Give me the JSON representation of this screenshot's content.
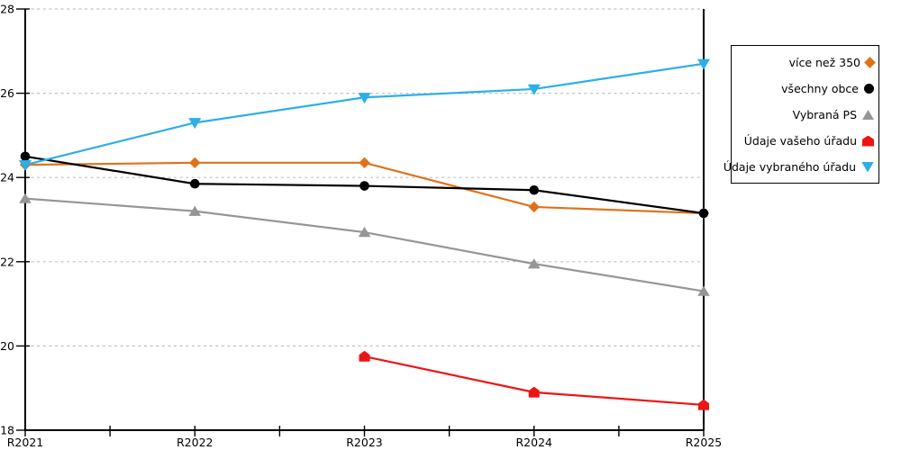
{
  "chart_data": {
    "type": "line",
    "title": "",
    "xlabel": "",
    "ylabel": "",
    "x_categories": [
      "R2021",
      "R2022",
      "R2023",
      "R2024",
      "R2025"
    ],
    "yticks": [
      18,
      20,
      22,
      24,
      26,
      28
    ],
    "ylim": [
      18,
      28
    ],
    "grid": "horizontal-dashed",
    "legend_position": "outside-right-top",
    "series": [
      {
        "name": "více než 350",
        "marker": "diamond",
        "color": "#DE721A",
        "values": [
          24.3,
          24.35,
          24.35,
          23.3,
          23.15
        ]
      },
      {
        "name": "všechny obce",
        "marker": "circle",
        "color": "#000000",
        "values": [
          24.5,
          23.85,
          23.8,
          23.7,
          23.15
        ]
      },
      {
        "name": "Vybraná PS",
        "marker": "triangle-up",
        "color": "#969696",
        "values": [
          23.5,
          23.2,
          22.7,
          21.95,
          21.3
        ]
      },
      {
        "name": "Údaje vašeho úřadu",
        "marker": "pentagon",
        "color": "#EE1414",
        "values": [
          null,
          null,
          19.75,
          18.9,
          18.6
        ]
      },
      {
        "name": "Údaje vybraného úřadu",
        "marker": "triangle-down",
        "color": "#2BAFE8",
        "values": [
          24.3,
          25.3,
          25.9,
          26.1,
          26.7
        ]
      }
    ]
  },
  "colors": {
    "background": "#FFFFFF",
    "axis": "#000000",
    "gridline": "#C0C0C0",
    "text": "#000000"
  }
}
